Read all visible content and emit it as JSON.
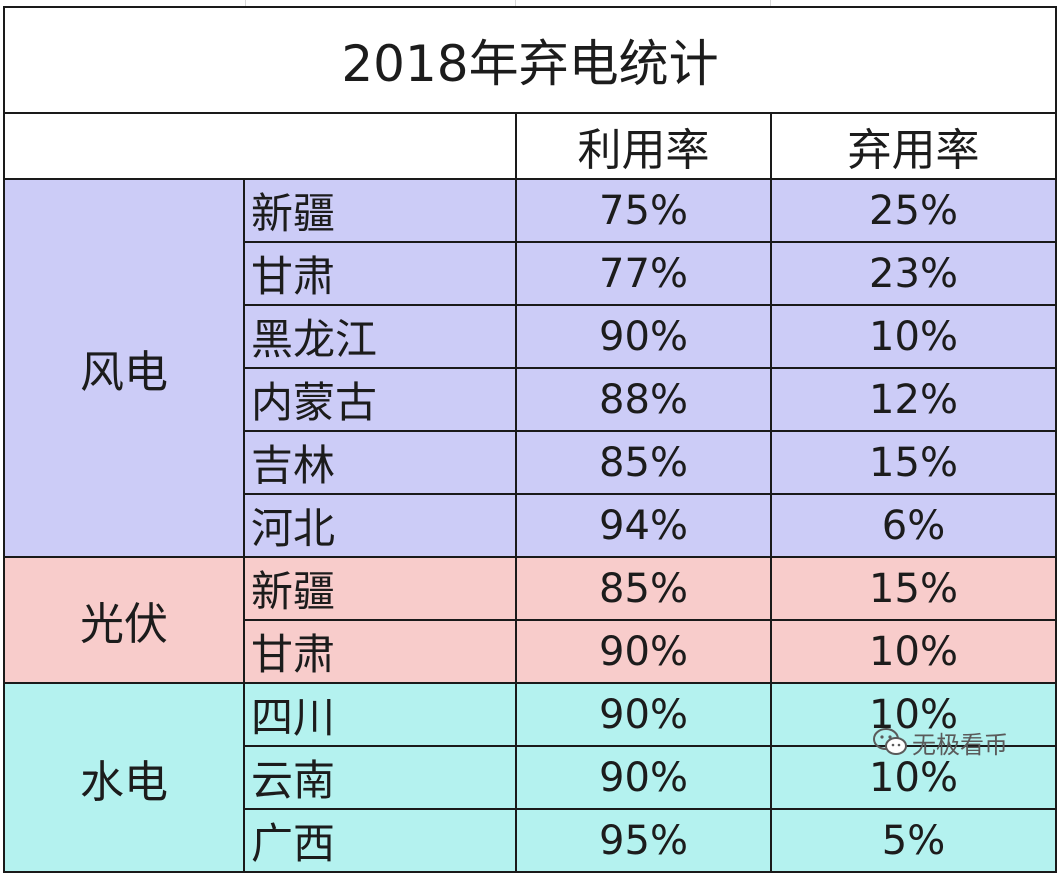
{
  "table": {
    "title": "2018年弃电统计",
    "headers": {
      "blank": "",
      "utilization": "利用率",
      "curtailment": "弃用率"
    },
    "groups": [
      {
        "category": "风电",
        "color": "#ccccf7",
        "rows": [
          {
            "region": "新疆",
            "utilization": "75%",
            "curtailment": "25%"
          },
          {
            "region": "甘肃",
            "utilization": "77%",
            "curtailment": "23%"
          },
          {
            "region": "黑龙江",
            "utilization": "90%",
            "curtailment": "10%"
          },
          {
            "region": "内蒙古",
            "utilization": "88%",
            "curtailment": "12%"
          },
          {
            "region": "吉林",
            "utilization": "85%",
            "curtailment": "15%"
          },
          {
            "region": "河北",
            "utilization": "94%",
            "curtailment": "6%"
          }
        ]
      },
      {
        "category": "光伏",
        "color": "#f8cccb",
        "rows": [
          {
            "region": "新疆",
            "utilization": "85%",
            "curtailment": "15%"
          },
          {
            "region": "甘肃",
            "utilization": "90%",
            "curtailment": "10%"
          }
        ]
      },
      {
        "category": "水电",
        "color": "#b4f2ef",
        "rows": [
          {
            "region": "四川",
            "utilization": "90%",
            "curtailment": "10%"
          },
          {
            "region": "云南",
            "utilization": "90%",
            "curtailment": "10%"
          },
          {
            "region": "广西",
            "utilization": "95%",
            "curtailment": "5%"
          }
        ]
      }
    ]
  },
  "watermark": {
    "icon": "wechat-logo-icon",
    "text": "无极看币"
  }
}
